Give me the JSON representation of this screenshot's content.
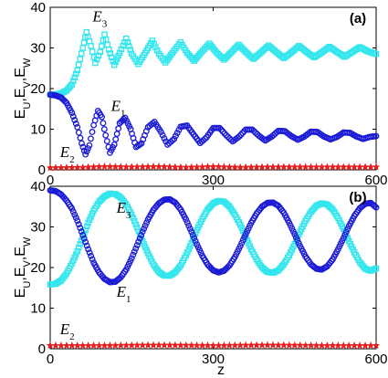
{
  "figure": {
    "xlabel": "z"
  },
  "chart_data": [
    {
      "type": "line",
      "panel_label": "(a)",
      "ylabel_parts": [
        "E",
        "U",
        ",E",
        "V",
        ",E",
        "W"
      ],
      "xlim": [
        0,
        600
      ],
      "ylim": [
        0,
        40
      ],
      "xticks": [
        0,
        300,
        600
      ],
      "yticks": [
        0,
        10,
        20,
        30,
        40
      ],
      "grid": false,
      "series": [
        {
          "color": "#33e6ee",
          "marker": "square",
          "values": [
            [
              0,
              18.5
            ],
            [
              10,
              18.6
            ],
            [
              20,
              18.8
            ],
            [
              30,
              19.5
            ],
            [
              40,
              21
            ],
            [
              50,
              24.5
            ],
            [
              60,
              30
            ],
            [
              67,
              33.9
            ],
            [
              75,
              30.5
            ],
            [
              83,
              26.3
            ],
            [
              92,
              29
            ],
            [
              100,
              33.3
            ],
            [
              108,
              29.6
            ],
            [
              118,
              25.8
            ],
            [
              128,
              28.8
            ],
            [
              140,
              32.3
            ],
            [
              150,
              28.6
            ],
            [
              162,
              26
            ],
            [
              175,
              28.8
            ],
            [
              188,
              31.8
            ],
            [
              200,
              28.6
            ],
            [
              212,
              26.4
            ],
            [
              225,
              28.8
            ],
            [
              240,
              31.4
            ],
            [
              252,
              28.8
            ],
            [
              265,
              26.8
            ],
            [
              278,
              28.9
            ],
            [
              293,
              31.1
            ],
            [
              306,
              28.9
            ],
            [
              320,
              27.1
            ],
            [
              333,
              28.9
            ],
            [
              347,
              30.8
            ],
            [
              360,
              29
            ],
            [
              374,
              27.3
            ],
            [
              388,
              28.9
            ],
            [
              402,
              30.6
            ],
            [
              416,
              29
            ],
            [
              430,
              27.5
            ],
            [
              444,
              28.9
            ],
            [
              458,
              30.5
            ],
            [
              472,
              29
            ],
            [
              486,
              27.7
            ],
            [
              500,
              28.9
            ],
            [
              514,
              30.3
            ],
            [
              528,
              29
            ],
            [
              542,
              27.8
            ],
            [
              556,
              29
            ],
            [
              570,
              30.2
            ],
            [
              584,
              29.2
            ],
            [
              600,
              28.5
            ]
          ]
        },
        {
          "color": "#1a1ad6",
          "marker": "circle",
          "values": [
            [
              0,
              18.5
            ],
            [
              10,
              18.3
            ],
            [
              20,
              17.8
            ],
            [
              30,
              16.5
            ],
            [
              40,
              14
            ],
            [
              50,
              10.5
            ],
            [
              58,
              6.5
            ],
            [
              65,
              3.8
            ],
            [
              72,
              6
            ],
            [
              80,
              11
            ],
            [
              88,
              14.5
            ],
            [
              95,
              13
            ],
            [
              102,
              8.5
            ],
            [
              110,
              4.2
            ],
            [
              118,
              6.2
            ],
            [
              128,
              11.5
            ],
            [
              138,
              12.8
            ],
            [
              148,
              10
            ],
            [
              158,
              5.6
            ],
            [
              168,
              6.5
            ],
            [
              180,
              10.5
            ],
            [
              192,
              11.8
            ],
            [
              204,
              9.3
            ],
            [
              216,
              6.2
            ],
            [
              228,
              7.6
            ],
            [
              240,
              10.6
            ],
            [
              252,
              10.9
            ],
            [
              264,
              8.7
            ],
            [
              276,
              6.6
            ],
            [
              288,
              8
            ],
            [
              300,
              10.3
            ],
            [
              312,
              10.3
            ],
            [
              324,
              8.5
            ],
            [
              336,
              7
            ],
            [
              348,
              8.2
            ],
            [
              360,
              9.9
            ],
            [
              372,
              9.9
            ],
            [
              384,
              8.4
            ],
            [
              396,
              7.2
            ],
            [
              408,
              8.2
            ],
            [
              420,
              9.6
            ],
            [
              432,
              9.5
            ],
            [
              444,
              8.3
            ],
            [
              456,
              7.4
            ],
            [
              468,
              8.2
            ],
            [
              480,
              9.4
            ],
            [
              492,
              9.3
            ],
            [
              504,
              8.2
            ],
            [
              516,
              7.5
            ],
            [
              528,
              8.1
            ],
            [
              540,
              9.2
            ],
            [
              552,
              9.1
            ],
            [
              564,
              8.2
            ],
            [
              576,
              7.6
            ],
            [
              588,
              8.1
            ],
            [
              600,
              8.3
            ]
          ]
        },
        {
          "color": "#e81c1c",
          "marker": "star",
          "values": [
            [
              0,
              0.5
            ],
            [
              60,
              0.6
            ],
            [
              100,
              0.8
            ],
            [
              150,
              0.7
            ],
            [
              200,
              0.8
            ],
            [
              250,
              0.6
            ],
            [
              300,
              0.8
            ],
            [
              350,
              0.6
            ],
            [
              400,
              0.7
            ],
            [
              450,
              0.7
            ],
            [
              500,
              0.7
            ],
            [
              550,
              0.7
            ],
            [
              600,
              0.7
            ]
          ]
        }
      ],
      "annotations": [
        {
          "main": "E",
          "sub": "3",
          "x": 78,
          "y": 36.5
        },
        {
          "main": "E",
          "sub": "1",
          "x": 112,
          "y": 14.5
        },
        {
          "main": "E",
          "sub": "2",
          "x": 18,
          "y": 3.2
        }
      ]
    },
    {
      "type": "line",
      "panel_label": "(b)",
      "ylabel_parts": [
        "E",
        "U",
        ",E",
        "V",
        ",E",
        "W"
      ],
      "xlim": [
        0,
        600
      ],
      "ylim": [
        0,
        40
      ],
      "xticks": [
        0,
        300,
        600
      ],
      "yticks": [
        0,
        10,
        20,
        30,
        40
      ],
      "grid": false,
      "series": [
        {
          "color": "#33e6ee",
          "marker": "square",
          "values": [
            [
              0,
              15.8
            ],
            [
              10,
              16
            ],
            [
              20,
              16.8
            ],
            [
              30,
              18.5
            ],
            [
              40,
              21
            ],
            [
              50,
              24
            ],
            [
              60,
              27.5
            ],
            [
              70,
              31
            ],
            [
              80,
              34
            ],
            [
              90,
              36.2
            ],
            [
              100,
              37.5
            ],
            [
              110,
              38.2
            ],
            [
              120,
              38.1
            ],
            [
              130,
              37.2
            ],
            [
              140,
              35.5
            ],
            [
              150,
              33
            ],
            [
              160,
              29.8
            ],
            [
              170,
              26.5
            ],
            [
              180,
              23.5
            ],
            [
              190,
              20.8
            ],
            [
              200,
              18.9
            ],
            [
              210,
              18
            ],
            [
              220,
              18
            ],
            [
              230,
              18.8
            ],
            [
              240,
              20.5
            ],
            [
              250,
              23
            ],
            [
              260,
              26
            ],
            [
              270,
              29.2
            ],
            [
              280,
              32
            ],
            [
              290,
              34.3
            ],
            [
              300,
              35.8
            ],
            [
              310,
              36.4
            ],
            [
              320,
              36.2
            ],
            [
              330,
              35
            ],
            [
              340,
              33
            ],
            [
              350,
              30.5
            ],
            [
              360,
              27.5
            ],
            [
              370,
              24.5
            ],
            [
              380,
              22
            ],
            [
              390,
              20
            ],
            [
              400,
              18.9
            ],
            [
              410,
              18.7
            ],
            [
              420,
              19.3
            ],
            [
              430,
              20.8
            ],
            [
              440,
              23
            ],
            [
              450,
              25.8
            ],
            [
              460,
              28.8
            ],
            [
              470,
              31.5
            ],
            [
              480,
              33.7
            ],
            [
              490,
              35.2
            ],
            [
              500,
              35.8
            ],
            [
              510,
              35.5
            ],
            [
              520,
              34.3
            ],
            [
              530,
              32.2
            ],
            [
              540,
              29.5
            ],
            [
              550,
              26.5
            ],
            [
              560,
              23.7
            ],
            [
              570,
              21.3
            ],
            [
              580,
              19.7
            ],
            [
              590,
              19.2
            ],
            [
              600,
              19.8
            ]
          ]
        },
        {
          "color": "#1a1ad6",
          "marker": "circle",
          "values": [
            [
              0,
              39
            ],
            [
              10,
              38.8
            ],
            [
              20,
              38
            ],
            [
              30,
              36.5
            ],
            [
              40,
              34.5
            ],
            [
              50,
              31.5
            ],
            [
              60,
              28
            ],
            [
              70,
              24.5
            ],
            [
              80,
              21.2
            ],
            [
              90,
              18.8
            ],
            [
              100,
              17.2
            ],
            [
              110,
              16.4
            ],
            [
              120,
              16.5
            ],
            [
              130,
              17.6
            ],
            [
              140,
              19.5
            ],
            [
              150,
              22.3
            ],
            [
              160,
              25.5
            ],
            [
              170,
              28.8
            ],
            [
              180,
              31.8
            ],
            [
              190,
              34.2
            ],
            [
              200,
              35.8
            ],
            [
              210,
              36.7
            ],
            [
              220,
              36.8
            ],
            [
              230,
              36
            ],
            [
              240,
              34.3
            ],
            [
              250,
              31.8
            ],
            [
              260,
              28.8
            ],
            [
              270,
              25.7
            ],
            [
              280,
              22.9
            ],
            [
              290,
              20.7
            ],
            [
              300,
              19.3
            ],
            [
              310,
              18.8
            ],
            [
              320,
              19.2
            ],
            [
              330,
              20.5
            ],
            [
              340,
              22.6
            ],
            [
              350,
              25.3
            ],
            [
              360,
              28.2
            ],
            [
              370,
              31
            ],
            [
              380,
              33.3
            ],
            [
              390,
              35
            ],
            [
              400,
              35.9
            ],
            [
              410,
              36
            ],
            [
              420,
              35.2
            ],
            [
              430,
              33.5
            ],
            [
              440,
              31
            ],
            [
              450,
              28.2
            ],
            [
              460,
              25.3
            ],
            [
              470,
              22.7
            ],
            [
              480,
              20.8
            ],
            [
              490,
              19.7
            ],
            [
              500,
              19.5
            ],
            [
              510,
              20.3
            ],
            [
              520,
              22
            ],
            [
              530,
              24.5
            ],
            [
              540,
              27.3
            ],
            [
              550,
              30.2
            ],
            [
              560,
              32.7
            ],
            [
              570,
              34.6
            ],
            [
              580,
              35.7
            ],
            [
              590,
              35.9
            ],
            [
              600,
              34.8
            ]
          ]
        },
        {
          "color": "#e81c1c",
          "marker": "star",
          "values": [
            [
              0,
              0.8
            ],
            [
              100,
              0.8
            ],
            [
              200,
              0.9
            ],
            [
              300,
              0.8
            ],
            [
              400,
              0.9
            ],
            [
              500,
              0.8
            ],
            [
              600,
              0.8
            ]
          ]
        }
      ],
      "annotations": [
        {
          "main": "E",
          "sub": "3",
          "x": 122,
          "y": 33.5
        },
        {
          "main": "E",
          "sub": "1",
          "x": 122,
          "y": 12.8
        },
        {
          "main": "E",
          "sub": "2",
          "x": 18,
          "y": 3.6
        }
      ]
    }
  ]
}
